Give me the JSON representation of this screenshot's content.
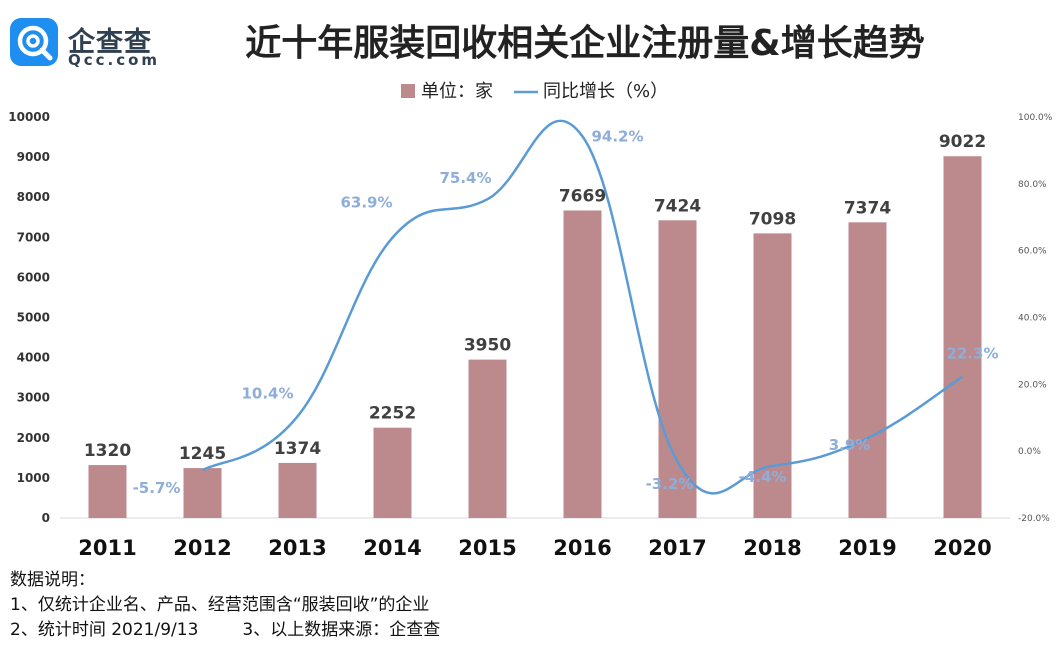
{
  "header": {
    "logo_cn": "企查查",
    "logo_en": "Qcc.com",
    "title": "近十年服装回收相关企业注册量&增长趋势"
  },
  "chart_data": {
    "type": "bar",
    "title": "近十年服装回收相关企业注册量&增长趋势",
    "categories": [
      "2011",
      "2012",
      "2013",
      "2014",
      "2015",
      "2016",
      "2017",
      "2018",
      "2019",
      "2020"
    ],
    "series": [
      {
        "name": "单位：家",
        "type": "bar",
        "axis": "left",
        "color": "#bc8a8d",
        "values": [
          1320,
          1245,
          1374,
          2252,
          3950,
          7669,
          7424,
          7098,
          7374,
          9022
        ],
        "labels": [
          "1320",
          "1245",
          "1374",
          "2252",
          "3950",
          "7669",
          "7424",
          "7098",
          "7374",
          "9022"
        ]
      },
      {
        "name": "同比增长（%）",
        "type": "line",
        "axis": "right",
        "color": "#5b9bd5",
        "label_color": "#8eaed9",
        "values": [
          null,
          -5.7,
          10.4,
          63.9,
          75.4,
          94.2,
          -3.2,
          -4.4,
          3.9,
          22.3
        ],
        "labels": [
          "",
          "-5.7%",
          "10.4%",
          "63.9%",
          "75.4%",
          "94.2%",
          "-3.2%",
          "-4.4%",
          "3.9%",
          "22.3%"
        ]
      }
    ],
    "y_left": {
      "min": 0,
      "max": 10000,
      "ticks": [
        "0",
        "1000",
        "2000",
        "3000",
        "4000",
        "5000",
        "6000",
        "7000",
        "8000",
        "9000",
        "10000"
      ]
    },
    "y_right": {
      "min": -20,
      "max": 100,
      "ticks": [
        "-20.0%",
        "0.0%",
        "20.0%",
        "40.0%",
        "60.0%",
        "80.0%",
        "100.0%"
      ]
    },
    "legend": {
      "bar_label": "单位：家",
      "line_label": "同比增长（%）",
      "placement": "top-center"
    },
    "grid": false
  },
  "notes": {
    "heading": "数据说明：",
    "line1": "1、仅统计企业名、产品、经营范围含“服装回收”的企业",
    "line2a": "2、统计时间 2021/9/13",
    "line2b": "3、以上数据来源：企查查"
  }
}
